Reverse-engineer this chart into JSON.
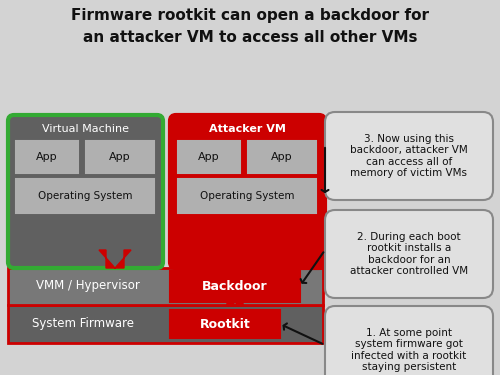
{
  "title_line1": "Firmware rootkit can open a backdoor for",
  "title_line2": "an attacker VM to access all other VMs",
  "bg_color": "#d3d3d3",
  "dark_gray": "#606060",
  "medium_gray": "#787878",
  "inner_gray": "#b0b0b0",
  "red": "#cc0000",
  "green_border": "#33aa33",
  "white": "#ffffff",
  "text_dark": "#111111",
  "annotation_bg": "#e0e0e0",
  "note1": "1. At some point\nsystem firmware got\ninfected with a rootkit\nstaying persistent",
  "note2": "2. During each boot\nrootkit installs a\nbackdoor for an\nattacker controlled VM",
  "note3": "3. Now using this\nbackdoor, attacker VM\ncan access all of\nmemory of victim VMs"
}
